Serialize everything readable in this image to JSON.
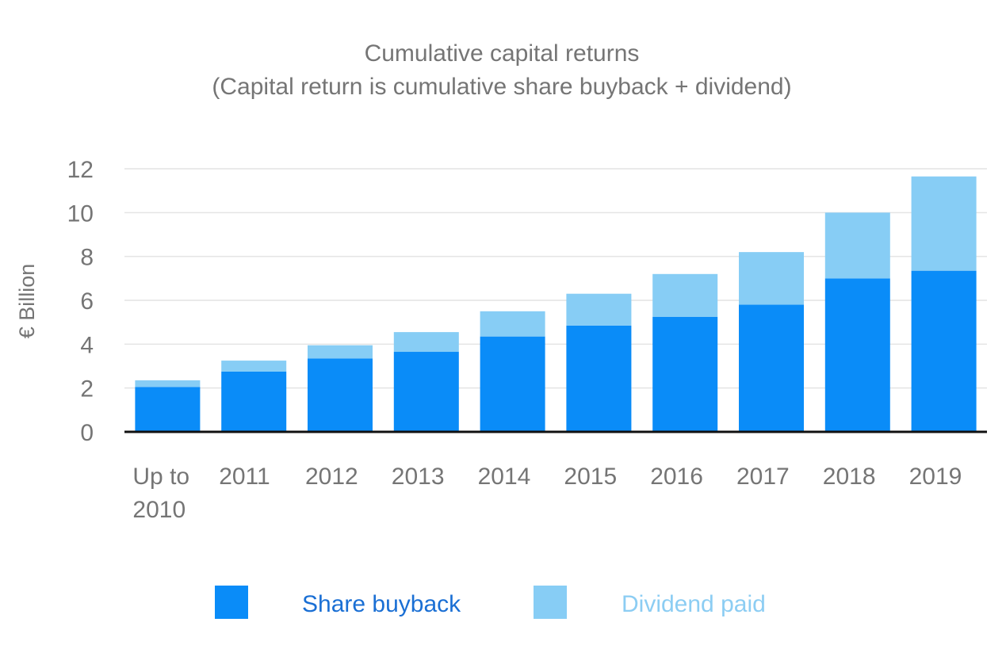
{
  "chart_data": {
    "type": "bar",
    "stacked": true,
    "title": "Cumulative capital returns",
    "subtitle": "(Capital return is cumulative share buyback + dividend)",
    "xlabel": "",
    "ylabel": "€ Billion",
    "ylim": [
      0,
      12
    ],
    "yticks": [
      "0",
      "2",
      "4",
      "6",
      "8",
      "10",
      "12"
    ],
    "grid": true,
    "legend_position": "bottom",
    "categories": [
      [
        "Up to",
        "2010"
      ],
      [
        "2011"
      ],
      [
        "2012"
      ],
      [
        "2013"
      ],
      [
        "2014"
      ],
      [
        "2015"
      ],
      [
        "2016"
      ],
      [
        "2017"
      ],
      [
        "2018"
      ],
      [
        "2019"
      ]
    ],
    "series": [
      {
        "name": "Share buyback",
        "color": "#0a8cf8",
        "label_color": "#1a6fd4",
        "values": [
          2.05,
          2.75,
          3.35,
          3.65,
          4.35,
          4.85,
          5.25,
          5.8,
          7.0,
          7.35
        ]
      },
      {
        "name": "Dividend paid",
        "color": "#87cdf5",
        "label_color": "#8ccdf3",
        "values": [
          0.3,
          0.5,
          0.6,
          0.9,
          1.15,
          1.45,
          1.95,
          2.4,
          3.0,
          4.3
        ]
      }
    ]
  }
}
